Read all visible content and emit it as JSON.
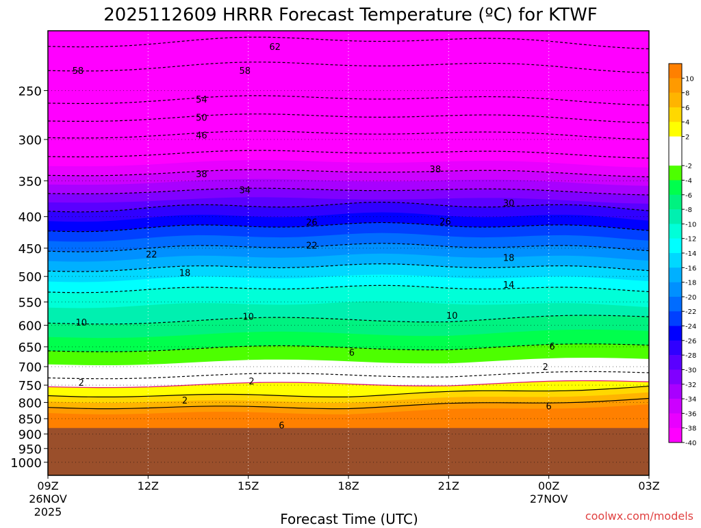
{
  "chart_data": {
    "type": "heatmap",
    "title": "2025112609 HRRR Forecast Temperature (ºC) for KTWF",
    "xlabel": "Forecast Time (UTC)",
    "credit": "coolwx.com/models",
    "y_scale": "log",
    "y_range": [
      1050,
      200
    ],
    "y_ticks": [
      250,
      300,
      350,
      400,
      450,
      500,
      550,
      600,
      650,
      700,
      750,
      800,
      850,
      900,
      950,
      1000
    ],
    "x_hours": [
      0,
      18
    ],
    "x_ticks": [
      {
        "hour": 0,
        "label": "09Z",
        "sub1": "26NOV",
        "sub2": "2025"
      },
      {
        "hour": 3,
        "label": "12Z",
        "sub1": "",
        "sub2": ""
      },
      {
        "hour": 6,
        "label": "15Z",
        "sub1": "",
        "sub2": ""
      },
      {
        "hour": 9,
        "label": "18Z",
        "sub1": "",
        "sub2": ""
      },
      {
        "hour": 12,
        "label": "21Z",
        "sub1": "",
        "sub2": ""
      },
      {
        "hour": 15,
        "label": "00Z",
        "sub1": "27NOV",
        "sub2": ""
      },
      {
        "hour": 18,
        "label": "03Z",
        "sub1": "",
        "sub2": ""
      }
    ],
    "ground_pressure": 880,
    "colors": {
      "ground": "#9a4f2b",
      "freezing_line": "#e0197a",
      "background": "#ffffff"
    },
    "levels_profile": [
      {
        "t": 10,
        "p": 850
      },
      {
        "t": 6,
        "p": 815
      },
      {
        "t": 2,
        "p": 780
      },
      {
        "t": -2,
        "p": 730
      },
      {
        "t": -6,
        "p": 660
      },
      {
        "t": -10,
        "p": 595
      },
      {
        "t": -14,
        "p": 530
      },
      {
        "t": -18,
        "p": 490
      },
      {
        "t": -22,
        "p": 455
      },
      {
        "t": -26,
        "p": 422
      },
      {
        "t": -30,
        "p": 392
      },
      {
        "t": -34,
        "p": 367
      },
      {
        "t": -38,
        "p": 343
      },
      {
        "t": -46,
        "p": 298
      },
      {
        "t": -50,
        "p": 280
      },
      {
        "t": -54,
        "p": 262
      },
      {
        "t": -58,
        "p": 232
      },
      {
        "t": -62,
        "p": 212
      }
    ],
    "contour_labels": [
      {
        "text": "62",
        "hour": 6.8,
        "p": 212
      },
      {
        "text": "58",
        "hour": 0.9,
        "p": 232
      },
      {
        "text": "58",
        "hour": 5.9,
        "p": 232
      },
      {
        "text": "54",
        "hour": 4.6,
        "p": 258
      },
      {
        "text": "50",
        "hour": 4.6,
        "p": 276
      },
      {
        "text": "46",
        "hour": 4.6,
        "p": 295
      },
      {
        "text": "38",
        "hour": 4.6,
        "p": 341
      },
      {
        "text": "38",
        "hour": 11.6,
        "p": 335
      },
      {
        "text": "34",
        "hour": 5.9,
        "p": 362
      },
      {
        "text": "30",
        "hour": 13.8,
        "p": 380
      },
      {
        "text": "26",
        "hour": 7.9,
        "p": 408
      },
      {
        "text": "26",
        "hour": 11.9,
        "p": 407
      },
      {
        "text": "22",
        "hour": 3.1,
        "p": 460
      },
      {
        "text": "22",
        "hour": 7.9,
        "p": 445
      },
      {
        "text": "18",
        "hour": 4.1,
        "p": 493
      },
      {
        "text": "18",
        "hour": 13.8,
        "p": 466
      },
      {
        "text": "14",
        "hour": 13.8,
        "p": 515
      },
      {
        "text": "10",
        "hour": 1.0,
        "p": 593
      },
      {
        "text": "10",
        "hour": 6.0,
        "p": 580
      },
      {
        "text": "10",
        "hour": 12.1,
        "p": 578
      },
      {
        "text": "6",
        "hour": 9.1,
        "p": 663
      },
      {
        "text": "6",
        "hour": 15.1,
        "p": 648
      },
      {
        "text": "2",
        "hour": 1.0,
        "p": 742
      },
      {
        "text": "2",
        "hour": 6.1,
        "p": 738
      },
      {
        "text": "2",
        "hour": 14.9,
        "p": 700
      },
      {
        "text": "2",
        "hour": 4.1,
        "p": 793
      },
      {
        "text": "6",
        "hour": 15.0,
        "p": 810
      },
      {
        "text": "6",
        "hour": 7.0,
        "p": 870
      }
    ],
    "colorbar": [
      {
        "label": "10",
        "color": "#ff8000"
      },
      {
        "label": "8",
        "color": "#ff9a00"
      },
      {
        "label": "6",
        "color": "#ffb400"
      },
      {
        "label": "4",
        "color": "#ffd800"
      },
      {
        "label": "2",
        "color": "#ffff00"
      },
      {
        "label": "",
        "color": "#ffffff"
      },
      {
        "label": "-2",
        "color": "#ffffff"
      },
      {
        "label": "-4",
        "color": "#4dff00"
      },
      {
        "label": "-6",
        "color": "#00ff4d"
      },
      {
        "label": "-8",
        "color": "#00f280"
      },
      {
        "label": "-10",
        "color": "#00f0b0"
      },
      {
        "label": "-12",
        "color": "#00ffd8"
      },
      {
        "label": "-14",
        "color": "#00ffff"
      },
      {
        "label": "-16",
        "color": "#00d8ff"
      },
      {
        "label": "-18",
        "color": "#00b0ff"
      },
      {
        "label": "-20",
        "color": "#0090ff"
      },
      {
        "label": "-22",
        "color": "#006cff"
      },
      {
        "label": "-24",
        "color": "#0040ff"
      },
      {
        "label": "-26",
        "color": "#0000ff"
      },
      {
        "label": "-28",
        "color": "#3000ff"
      },
      {
        "label": "-30",
        "color": "#5a00ff"
      },
      {
        "label": "-32",
        "color": "#8000ff"
      },
      {
        "label": "-34",
        "color": "#a800ff"
      },
      {
        "label": "-36",
        "color": "#cc00ff"
      },
      {
        "label": "-38",
        "color": "#e800ff"
      },
      {
        "label": "-40",
        "color": "#ff00ff"
      }
    ]
  }
}
